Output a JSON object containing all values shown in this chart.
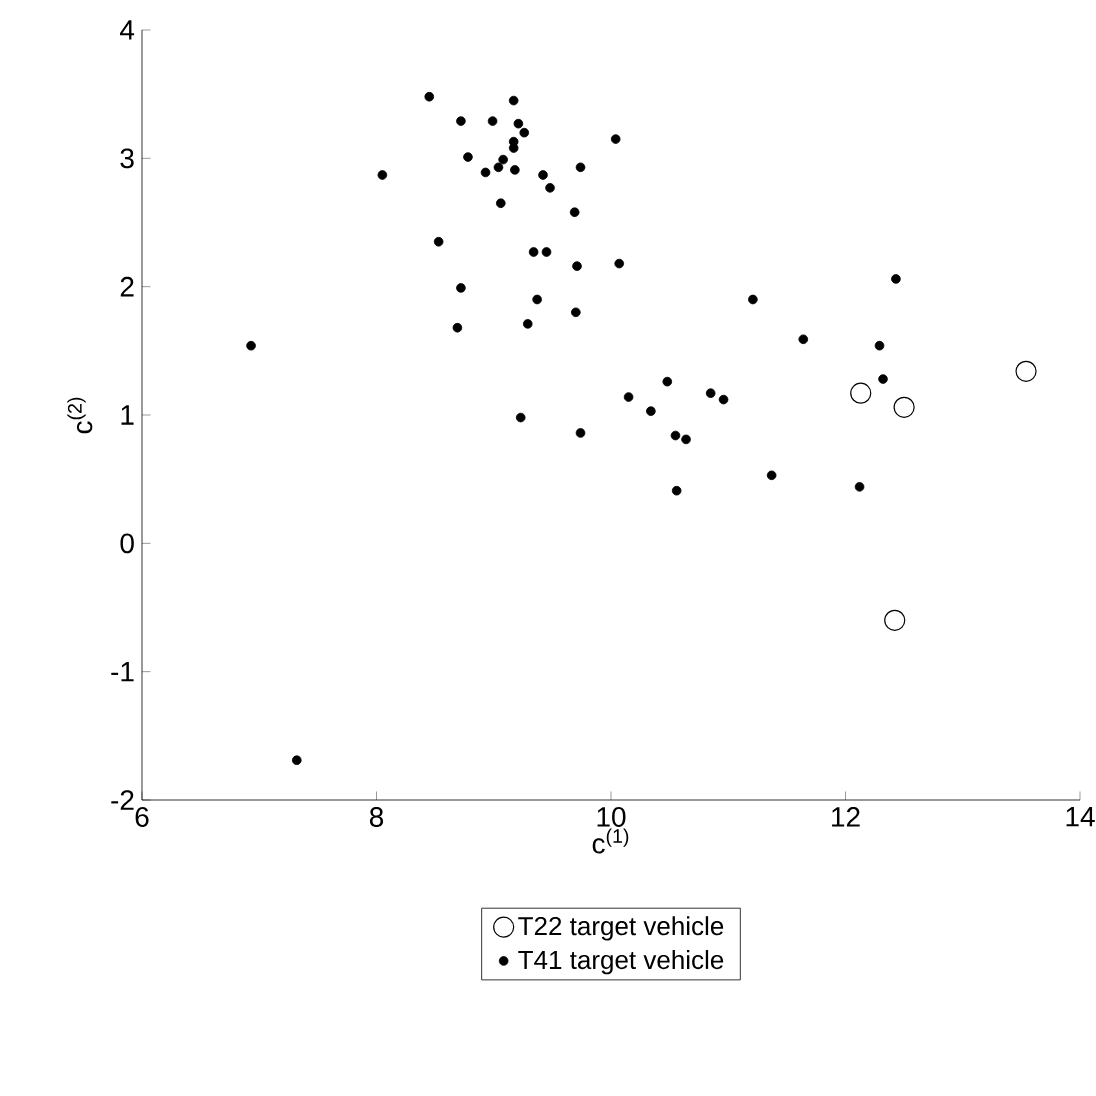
{
  "chart_data": {
    "type": "scatter",
    "xlabel": "c$^{(1)}$",
    "ylabel": "c$^{(2)}$",
    "xlim": [
      6,
      14
    ],
    "ylim": [
      -2,
      4
    ],
    "xticks": [
      6,
      8,
      10,
      12,
      14
    ],
    "yticks": [
      -2,
      -1,
      0,
      1,
      2,
      3,
      4
    ],
    "grid": false,
    "legend": "bottom",
    "series": [
      {
        "name": "T22 target vehicle",
        "color": "#000000",
        "x": [
          12.13,
          12.5,
          13.54,
          12.42
        ],
        "values": [
          1.17,
          1.06,
          1.34,
          -0.6
        ]
      },
      {
        "name": "T41 target vehicle",
        "color": "#000000",
        "x": [
          8.45,
          9.17,
          8.72,
          8.99,
          9.21,
          9.26,
          9.17,
          9.17,
          10.04,
          8.78,
          9.08,
          9.04,
          8.93,
          9.18,
          8.05,
          9.42,
          9.74,
          9.48,
          9.06,
          9.69,
          8.53,
          9.34,
          9.45,
          9.71,
          10.07,
          8.72,
          9.37,
          9.7,
          8.69,
          9.29,
          6.93,
          11.21,
          11.64,
          12.29,
          12.43,
          12.32,
          10.48,
          10.15,
          10.34,
          10.85,
          10.96,
          9.23,
          9.74,
          10.55,
          10.64,
          10.56,
          11.37,
          12.12,
          7.32
        ],
        "values": [
          3.48,
          3.45,
          3.29,
          3.29,
          3.27,
          3.2,
          3.13,
          3.08,
          3.15,
          3.01,
          2.99,
          2.93,
          2.89,
          2.91,
          2.87,
          2.87,
          2.93,
          2.77,
          2.65,
          2.58,
          2.35,
          2.27,
          2.27,
          2.16,
          2.18,
          1.99,
          1.9,
          1.8,
          1.68,
          1.71,
          1.54,
          1.9,
          1.59,
          1.54,
          2.06,
          1.28,
          1.26,
          1.14,
          1.03,
          1.17,
          1.12,
          0.98,
          0.86,
          0.84,
          0.81,
          0.41,
          0.53,
          0.44,
          -1.69
        ]
      }
    ]
  }
}
